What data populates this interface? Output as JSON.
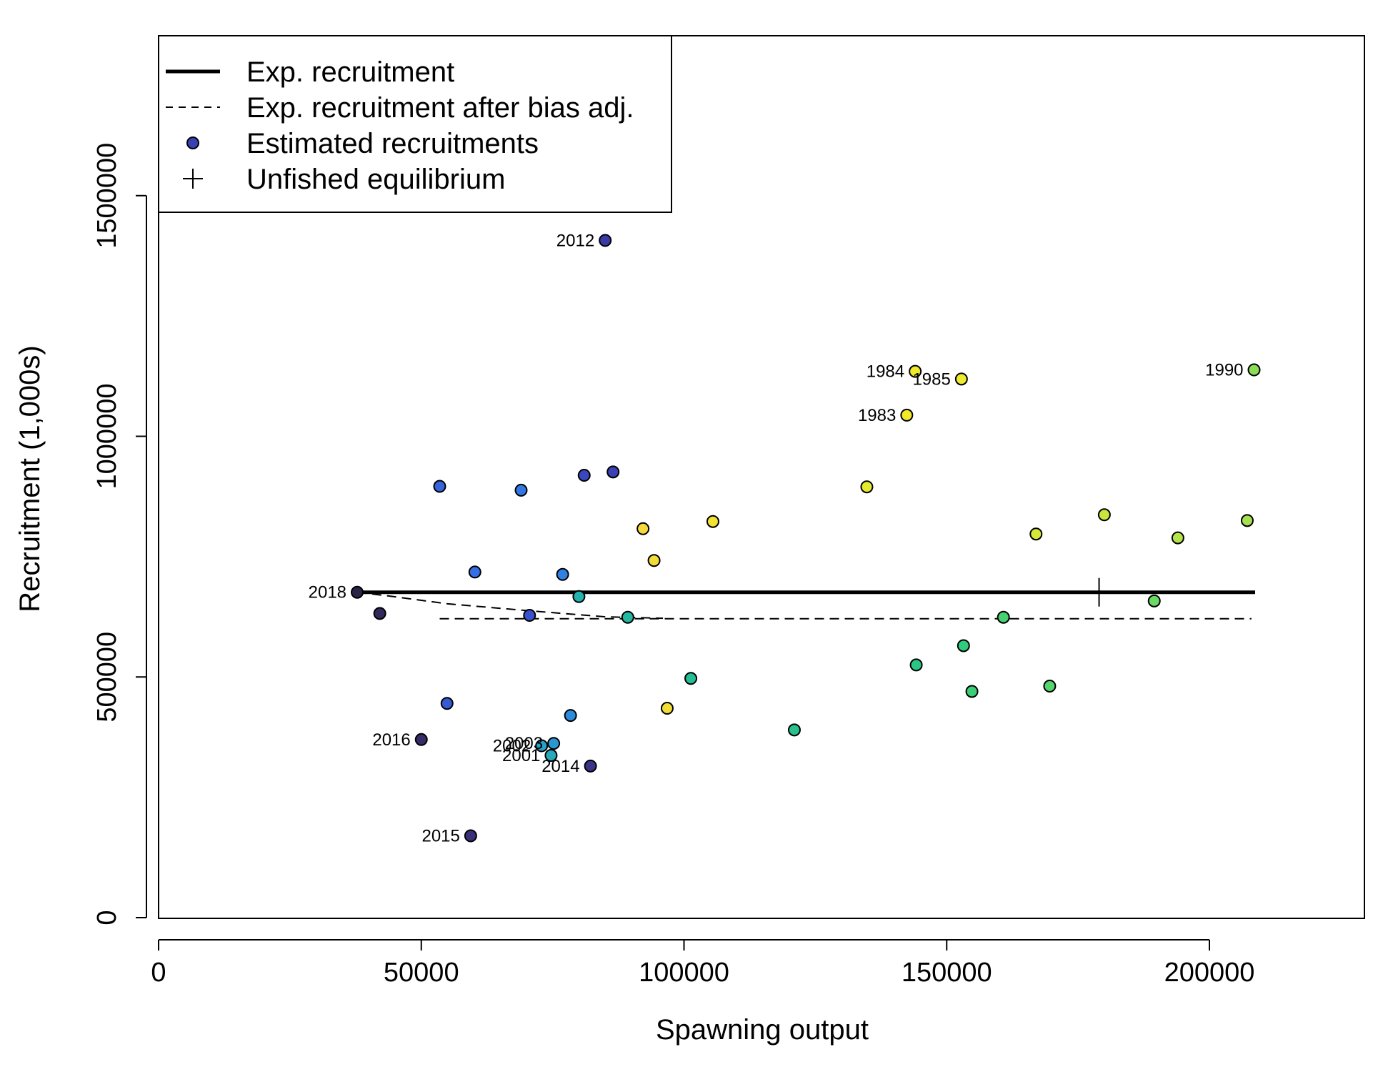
{
  "chart_data": {
    "type": "scatter",
    "xlabel": "Spawning output",
    "ylabel": "Recruitment (1,000s)",
    "xlim": [
      0,
      230000
    ],
    "ylim": [
      0,
      1885000
    ],
    "x_ticks": [
      0,
      50000,
      100000,
      150000,
      200000
    ],
    "x_tick_labels": [
      "0",
      "50000",
      "100000",
      "150000",
      "200000"
    ],
    "y_ticks": [
      0,
      500000,
      1000000,
      1500000
    ],
    "y_tick_labels": [
      "0",
      "500000",
      "1000000",
      "1500000"
    ],
    "legend": {
      "position": "top-left",
      "entries": [
        {
          "label": "Exp. recruitment",
          "symbol": "solid-line"
        },
        {
          "label": "Exp. recruitment after bias adj.",
          "symbol": "dashed-line"
        },
        {
          "label": "Estimated recruitments",
          "symbol": "filled-circle"
        },
        {
          "label": "Unfished equilibrium",
          "symbol": "plus"
        }
      ]
    },
    "expected_recruitment": {
      "x": [
        37800,
        208700
      ],
      "y": [
        676000,
        676000
      ]
    },
    "bias_adjusted_recruitment": {
      "x": [
        53500,
        208000
      ],
      "y": [
        621000,
        621000
      ]
    },
    "bias_adjusted_early_curve": {
      "x": [
        37800,
        44000,
        55000,
        70000,
        85000,
        96000
      ],
      "y": [
        676000,
        668000,
        652000,
        638000,
        625000,
        622000
      ]
    },
    "unfished_equilibrium": {
      "x": 179000,
      "y": 676000
    },
    "points": [
      {
        "x": 142400,
        "y": 1044000,
        "label": "1983",
        "color": "#f1e92a"
      },
      {
        "x": 144000,
        "y": 1135000,
        "label": "1984",
        "color": "#f1e92a"
      },
      {
        "x": 152800,
        "y": 1119000,
        "label": "1985",
        "color": "#ecea31"
      },
      {
        "x": 134800,
        "y": 895000,
        "label": "",
        "color": "#e6ea2f"
      },
      {
        "x": 167000,
        "y": 797000,
        "label": "",
        "color": "#d7e937"
      },
      {
        "x": 180000,
        "y": 837000,
        "label": "",
        "color": "#c8e63c"
      },
      {
        "x": 194000,
        "y": 789000,
        "label": "",
        "color": "#b5e34a"
      },
      {
        "x": 207200,
        "y": 825000,
        "label": "",
        "color": "#a6e04f"
      },
      {
        "x": 208500,
        "y": 1138000,
        "label": "1990",
        "color": "#8bdd58"
      },
      {
        "x": 189500,
        "y": 658000,
        "label": "",
        "color": "#6cd963"
      },
      {
        "x": 169600,
        "y": 481000,
        "label": "",
        "color": "#55d56b"
      },
      {
        "x": 160800,
        "y": 624000,
        "label": "",
        "color": "#47d170"
      },
      {
        "x": 154800,
        "y": 470000,
        "label": "",
        "color": "#3ace76"
      },
      {
        "x": 153200,
        "y": 565000,
        "label": "",
        "color": "#30cb7c"
      },
      {
        "x": 144200,
        "y": 525000,
        "label": "",
        "color": "#2ac784"
      },
      {
        "x": 121000,
        "y": 390000,
        "label": "",
        "color": "#26c28c"
      },
      {
        "x": 101300,
        "y": 497000,
        "label": "",
        "color": "#25bd96"
      },
      {
        "x": 89300,
        "y": 624000,
        "label": "",
        "color": "#25b8a1"
      },
      {
        "x": 80000,
        "y": 667000,
        "label": "",
        "color": "#25b2ae"
      },
      {
        "x": 74700,
        "y": 337000,
        "label": "2001",
        "color": "#26aabb"
      },
      {
        "x": 72900,
        "y": 357000,
        "label": "2002",
        "color": "#28a0c8"
      },
      {
        "x": 75200,
        "y": 362000,
        "label": "2003",
        "color": "#2a96d2"
      },
      {
        "x": 78400,
        "y": 420000,
        "label": "",
        "color": "#2c8cdc"
      },
      {
        "x": 76900,
        "y": 713000,
        "label": "",
        "color": "#2f82e4"
      },
      {
        "x": 69000,
        "y": 888000,
        "label": "",
        "color": "#3178e6"
      },
      {
        "x": 60200,
        "y": 718000,
        "label": "",
        "color": "#336ee2"
      },
      {
        "x": 53500,
        "y": 896000,
        "label": "",
        "color": "#3564dc"
      },
      {
        "x": 54900,
        "y": 445000,
        "label": "",
        "color": "#375ad4"
      },
      {
        "x": 70600,
        "y": 628000,
        "label": "",
        "color": "#3951cb"
      },
      {
        "x": 81000,
        "y": 919000,
        "label": "",
        "color": "#3a48c0"
      },
      {
        "x": 86500,
        "y": 926000,
        "label": "",
        "color": "#3b40b4"
      },
      {
        "x": 85000,
        "y": 1407000,
        "label": "2012",
        "color": "#3b3aa6"
      },
      {
        "x": 82200,
        "y": 315000,
        "label": "2014",
        "color": "#3a3487"
      },
      {
        "x": 59400,
        "y": 170000,
        "label": "2015",
        "color": "#383178"
      },
      {
        "x": 50000,
        "y": 370000,
        "label": "2016",
        "color": "#342d68"
      },
      {
        "x": 42100,
        "y": 632000,
        "label": "",
        "color": "#30295a"
      },
      {
        "x": 37800,
        "y": 676000,
        "label": "2018",
        "color": "#2a2548"
      },
      {
        "x": 92200,
        "y": 808000,
        "label": "",
        "color": "#f6d93c"
      },
      {
        "x": 94300,
        "y": 742000,
        "label": "",
        "color": "#f4dc38"
      },
      {
        "x": 96800,
        "y": 435000,
        "label": "",
        "color": "#f0de36"
      },
      {
        "x": 105500,
        "y": 823000,
        "label": "",
        "color": "#f2e231"
      }
    ]
  }
}
